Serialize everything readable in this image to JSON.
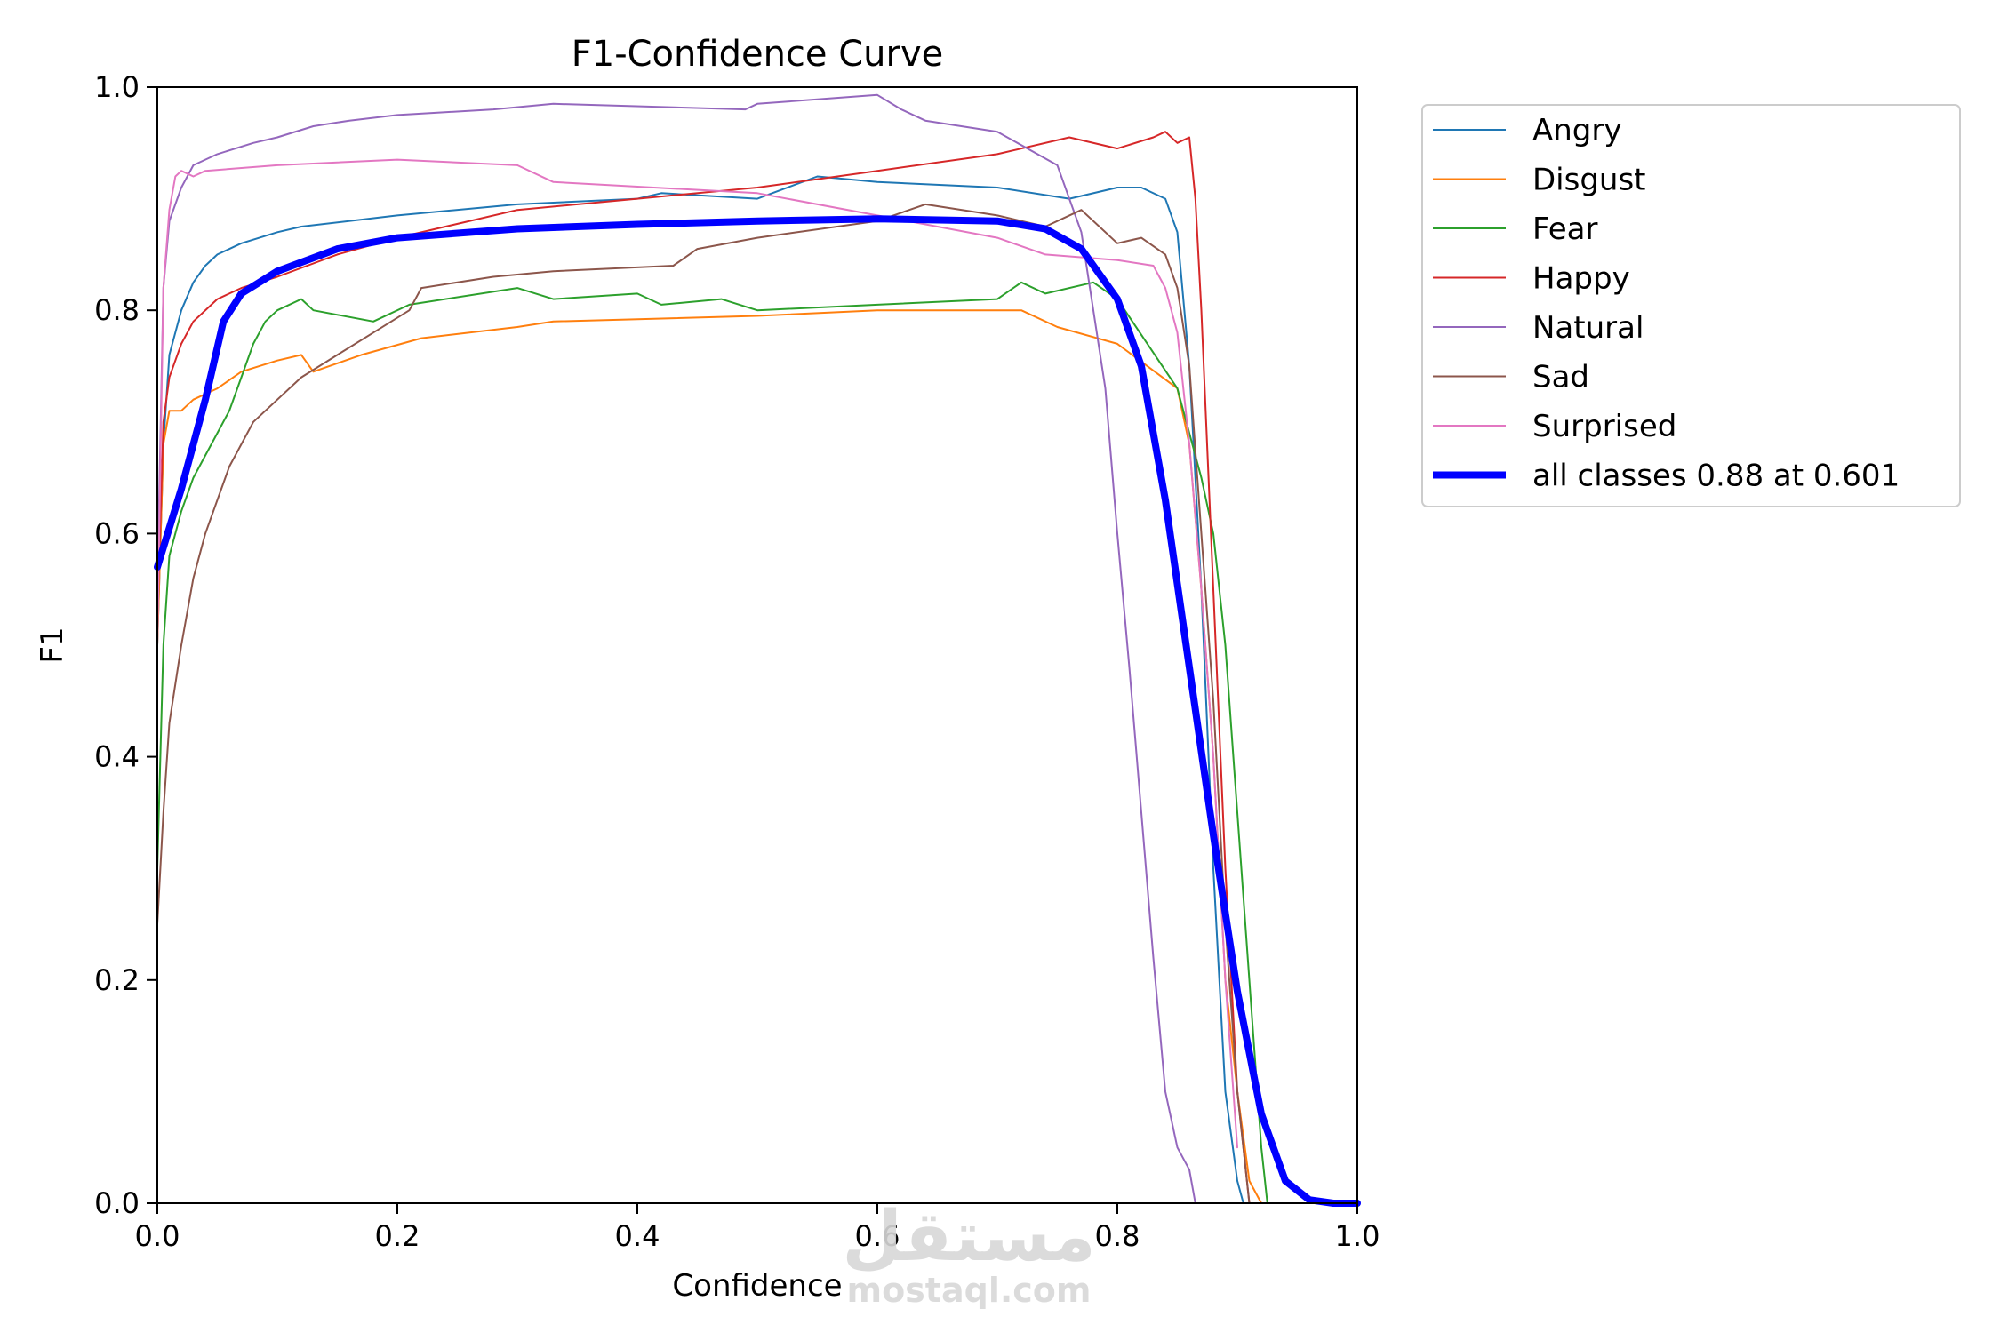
{
  "chart_data": {
    "type": "line",
    "title": "F1-Confidence Curve",
    "xlabel": "Confidence",
    "ylabel": "F1",
    "xlim": [
      0.0,
      1.0
    ],
    "ylim": [
      0.0,
      1.0
    ],
    "xticks": [
      "0.0",
      "0.2",
      "0.4",
      "0.6",
      "0.8",
      "1.0"
    ],
    "yticks": [
      "0.0",
      "0.2",
      "0.4",
      "0.6",
      "0.8",
      "1.0"
    ],
    "grid": false,
    "legend_position": "outside-right",
    "series": [
      {
        "name": "Angry",
        "color": "#1f77b4",
        "width": 2,
        "x": [
          0.0,
          0.005,
          0.01,
          0.02,
          0.03,
          0.04,
          0.05,
          0.07,
          0.1,
          0.12,
          0.2,
          0.3,
          0.4,
          0.42,
          0.5,
          0.55,
          0.6,
          0.7,
          0.76,
          0.8,
          0.82,
          0.84,
          0.85,
          0.86,
          0.87,
          0.88,
          0.89,
          0.9,
          0.905,
          0.91
        ],
        "y": [
          0.5,
          0.68,
          0.76,
          0.8,
          0.825,
          0.84,
          0.85,
          0.86,
          0.87,
          0.875,
          0.885,
          0.895,
          0.9,
          0.905,
          0.9,
          0.92,
          0.915,
          0.91,
          0.9,
          0.91,
          0.91,
          0.9,
          0.87,
          0.75,
          0.55,
          0.3,
          0.1,
          0.02,
          0.0,
          0.0
        ]
      },
      {
        "name": "Disgust",
        "color": "#ff7f0e",
        "width": 2,
        "x": [
          0.0,
          0.005,
          0.01,
          0.02,
          0.03,
          0.05,
          0.07,
          0.1,
          0.12,
          0.13,
          0.17,
          0.22,
          0.3,
          0.33,
          0.5,
          0.6,
          0.72,
          0.75,
          0.8,
          0.85,
          0.86,
          0.87,
          0.88,
          0.89,
          0.9,
          0.91,
          0.92
        ],
        "y": [
          0.5,
          0.68,
          0.71,
          0.71,
          0.72,
          0.73,
          0.745,
          0.755,
          0.76,
          0.745,
          0.76,
          0.775,
          0.785,
          0.79,
          0.795,
          0.8,
          0.8,
          0.785,
          0.77,
          0.73,
          0.68,
          0.55,
          0.4,
          0.2,
          0.1,
          0.02,
          0.0
        ]
      },
      {
        "name": "Fear",
        "color": "#2ca02c",
        "width": 2,
        "x": [
          0.0,
          0.005,
          0.01,
          0.02,
          0.03,
          0.04,
          0.05,
          0.06,
          0.07,
          0.08,
          0.09,
          0.1,
          0.12,
          0.13,
          0.18,
          0.21,
          0.3,
          0.33,
          0.4,
          0.42,
          0.47,
          0.5,
          0.6,
          0.7,
          0.72,
          0.74,
          0.78,
          0.8,
          0.85,
          0.87,
          0.88,
          0.89,
          0.9,
          0.91,
          0.92,
          0.925,
          0.93
        ],
        "y": [
          0.3,
          0.5,
          0.58,
          0.62,
          0.65,
          0.67,
          0.69,
          0.71,
          0.74,
          0.77,
          0.79,
          0.8,
          0.81,
          0.8,
          0.79,
          0.805,
          0.82,
          0.81,
          0.815,
          0.805,
          0.81,
          0.8,
          0.805,
          0.81,
          0.825,
          0.815,
          0.825,
          0.81,
          0.73,
          0.65,
          0.6,
          0.5,
          0.35,
          0.2,
          0.05,
          0.0,
          0.0
        ]
      },
      {
        "name": "Happy",
        "color": "#d62728",
        "width": 2,
        "x": [
          0.0,
          0.005,
          0.01,
          0.02,
          0.03,
          0.05,
          0.07,
          0.1,
          0.15,
          0.2,
          0.3,
          0.4,
          0.5,
          0.6,
          0.7,
          0.76,
          0.8,
          0.83,
          0.84,
          0.85,
          0.86,
          0.865,
          0.87,
          0.88,
          0.89,
          0.9,
          0.91
        ],
        "y": [
          0.52,
          0.7,
          0.74,
          0.77,
          0.79,
          0.81,
          0.82,
          0.83,
          0.85,
          0.865,
          0.89,
          0.9,
          0.91,
          0.925,
          0.94,
          0.955,
          0.945,
          0.955,
          0.96,
          0.95,
          0.955,
          0.9,
          0.8,
          0.55,
          0.3,
          0.1,
          0.0
        ]
      },
      {
        "name": "Natural",
        "color": "#9467bd",
        "width": 2,
        "x": [
          0.0,
          0.005,
          0.01,
          0.02,
          0.03,
          0.05,
          0.08,
          0.1,
          0.13,
          0.16,
          0.2,
          0.28,
          0.33,
          0.49,
          0.5,
          0.6,
          0.62,
          0.64,
          0.7,
          0.75,
          0.77,
          0.78,
          0.79,
          0.8,
          0.81,
          0.82,
          0.83,
          0.84,
          0.85,
          0.86,
          0.865,
          0.87
        ],
        "y": [
          0.55,
          0.82,
          0.88,
          0.91,
          0.93,
          0.94,
          0.95,
          0.955,
          0.965,
          0.97,
          0.975,
          0.98,
          0.985,
          0.98,
          0.985,
          0.993,
          0.98,
          0.97,
          0.96,
          0.93,
          0.87,
          0.8,
          0.73,
          0.6,
          0.48,
          0.35,
          0.22,
          0.1,
          0.05,
          0.03,
          0.0,
          0.0
        ]
      },
      {
        "name": "Sad",
        "color": "#8c564b",
        "width": 2,
        "x": [
          0.0,
          0.005,
          0.01,
          0.02,
          0.03,
          0.04,
          0.05,
          0.06,
          0.07,
          0.08,
          0.1,
          0.12,
          0.15,
          0.18,
          0.21,
          0.22,
          0.28,
          0.33,
          0.43,
          0.45,
          0.5,
          0.6,
          0.64,
          0.7,
          0.74,
          0.77,
          0.8,
          0.82,
          0.84,
          0.85,
          0.86,
          0.87,
          0.88,
          0.89,
          0.9,
          0.91
        ],
        "y": [
          0.25,
          0.35,
          0.43,
          0.5,
          0.56,
          0.6,
          0.63,
          0.66,
          0.68,
          0.7,
          0.72,
          0.74,
          0.76,
          0.78,
          0.8,
          0.82,
          0.83,
          0.835,
          0.84,
          0.855,
          0.865,
          0.88,
          0.895,
          0.885,
          0.875,
          0.89,
          0.86,
          0.865,
          0.85,
          0.82,
          0.75,
          0.6,
          0.45,
          0.25,
          0.1,
          0.0
        ]
      },
      {
        "name": "Surprised",
        "color": "#e377c2",
        "width": 2,
        "x": [
          0.0,
          0.005,
          0.01,
          0.015,
          0.02,
          0.03,
          0.04,
          0.1,
          0.2,
          0.3,
          0.33,
          0.5,
          0.6,
          0.7,
          0.74,
          0.8,
          0.83,
          0.84,
          0.85,
          0.86,
          0.87,
          0.88,
          0.89,
          0.9
        ],
        "y": [
          0.5,
          0.82,
          0.89,
          0.92,
          0.925,
          0.92,
          0.925,
          0.93,
          0.935,
          0.93,
          0.915,
          0.905,
          0.885,
          0.865,
          0.85,
          0.845,
          0.84,
          0.82,
          0.78,
          0.68,
          0.55,
          0.4,
          0.2,
          0.05
        ]
      },
      {
        "name": "all classes 0.88 at 0.601",
        "color": "#0000ff",
        "width": 8,
        "x": [
          0.0,
          0.02,
          0.04,
          0.055,
          0.07,
          0.1,
          0.15,
          0.2,
          0.3,
          0.4,
          0.5,
          0.601,
          0.7,
          0.74,
          0.77,
          0.8,
          0.82,
          0.84,
          0.86,
          0.88,
          0.9,
          0.92,
          0.94,
          0.96,
          0.98,
          1.0
        ],
        "y": [
          0.57,
          0.64,
          0.72,
          0.79,
          0.815,
          0.835,
          0.855,
          0.865,
          0.873,
          0.877,
          0.88,
          0.882,
          0.88,
          0.873,
          0.855,
          0.81,
          0.75,
          0.63,
          0.48,
          0.33,
          0.19,
          0.08,
          0.02,
          0.003,
          0.0,
          0.0
        ]
      }
    ]
  },
  "watermark": {
    "arabic": "مستقل",
    "latin": "mostaql.com"
  }
}
